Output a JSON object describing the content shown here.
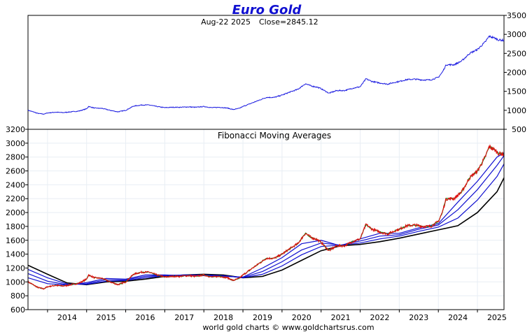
{
  "header": {
    "title": "Euro Gold",
    "date": "Aug-22  2025",
    "close": "Close=2845.12"
  },
  "footer": "world gold charts © www.goldchartsrus.com",
  "colors": {
    "price_line": "#1a1ae0",
    "fib_red": "#e01010",
    "fib_green": "#1a8a1a",
    "fib_blue": "#1010d0",
    "fib_black": "#000000",
    "grid": "#e8eef4"
  },
  "chart_data": [
    {
      "type": "line",
      "title": "Euro Gold",
      "subtitle": "Aug-22  2025   Close=2845.12",
      "y_axis_side": "right",
      "y_ticks": [
        500,
        1000,
        1500,
        2000,
        2500,
        3000,
        3500
      ],
      "ylim": [
        500,
        3500
      ],
      "xlim": [
        2013.5,
        2025.68
      ],
      "grid": false,
      "series": [
        {
          "x": [
            2013.5,
            2013.6,
            2013.75,
            2013.9,
            2014.0,
            2014.2,
            2014.4,
            2014.6,
            2014.8,
            2015.0,
            2015.05,
            2015.2,
            2015.4,
            2015.6,
            2015.8,
            2016.0,
            2016.2,
            2016.4,
            2016.6,
            2016.8,
            2017.0,
            2017.2,
            2017.4,
            2017.6,
            2017.8,
            2018.0,
            2018.2,
            2018.4,
            2018.6,
            2018.75,
            2018.9,
            2019.0,
            2019.2,
            2019.4,
            2019.6,
            2019.8,
            2020.0,
            2020.2,
            2020.4,
            2020.6,
            2020.75,
            2020.9,
            2021.0,
            2021.2,
            2021.4,
            2021.6,
            2021.8,
            2022.0,
            2022.15,
            2022.3,
            2022.5,
            2022.7,
            2022.9,
            2023.0,
            2023.2,
            2023.4,
            2023.6,
            2023.8,
            2024.0,
            2024.1,
            2024.2,
            2024.4,
            2024.6,
            2024.8,
            2025.0,
            2025.2,
            2025.3,
            2025.45,
            2025.55,
            2025.68
          ],
          "y": [
            1000,
            970,
            920,
            900,
            930,
            950,
            940,
            960,
            980,
            1040,
            1100,
            1060,
            1050,
            1000,
            960,
            1000,
            1110,
            1140,
            1140,
            1100,
            1070,
            1080,
            1080,
            1090,
            1080,
            1100,
            1070,
            1080,
            1060,
            1020,
            1050,
            1100,
            1180,
            1260,
            1340,
            1340,
            1400,
            1480,
            1550,
            1700,
            1640,
            1610,
            1570,
            1450,
            1520,
            1520,
            1580,
            1620,
            1830,
            1760,
            1720,
            1690,
            1740,
            1760,
            1810,
            1820,
            1800,
            1800,
            1870,
            2000,
            2200,
            2200,
            2300,
            2500,
            2600,
            2800,
            2950,
            2900,
            2850,
            2845
          ]
        }
      ]
    },
    {
      "type": "line",
      "title": "Fibonacci Moving Averages",
      "y_axis_side": "left",
      "y_ticks": [
        600,
        800,
        1000,
        1200,
        1400,
        1600,
        1800,
        2000,
        2200,
        2400,
        2600,
        2800,
        3000,
        3200
      ],
      "ylim": [
        600,
        3200
      ],
      "x_ticks": [
        "2014",
        "2015",
        "2016",
        "2017",
        "2018",
        "2019",
        "2020",
        "2021",
        "2022",
        "2023",
        "2024",
        "2025"
      ],
      "xlim": [
        2013.5,
        2025.68
      ],
      "grid": true,
      "series": [
        {
          "x": [
            2013.5,
            2013.6,
            2013.75,
            2013.9,
            2014.0,
            2014.2,
            2014.4,
            2014.6,
            2014.8,
            2015.0,
            2015.05,
            2015.2,
            2015.4,
            2015.6,
            2015.8,
            2016.0,
            2016.2,
            2016.4,
            2016.6,
            2016.8,
            2017.0,
            2017.2,
            2017.4,
            2017.6,
            2017.8,
            2018.0,
            2018.2,
            2018.4,
            2018.6,
            2018.75,
            2018.9,
            2019.0,
            2019.2,
            2019.4,
            2019.6,
            2019.8,
            2020.0,
            2020.2,
            2020.4,
            2020.6,
            2020.75,
            2020.9,
            2021.0,
            2021.2,
            2021.4,
            2021.6,
            2021.8,
            2022.0,
            2022.15,
            2022.3,
            2022.5,
            2022.7,
            2022.9,
            2023.0,
            2023.2,
            2023.4,
            2023.6,
            2023.8,
            2024.0,
            2024.1,
            2024.2,
            2024.4,
            2024.6,
            2024.8,
            2025.0,
            2025.2,
            2025.3,
            2025.45,
            2025.55,
            2025.68
          ],
          "y": [
            1000,
            970,
            920,
            900,
            930,
            950,
            940,
            960,
            980,
            1040,
            1100,
            1060,
            1050,
            1000,
            960,
            1000,
            1110,
            1140,
            1140,
            1100,
            1070,
            1080,
            1080,
            1090,
            1080,
            1100,
            1070,
            1080,
            1060,
            1020,
            1050,
            1100,
            1180,
            1260,
            1340,
            1340,
            1400,
            1480,
            1550,
            1700,
            1640,
            1610,
            1570,
            1450,
            1520,
            1520,
            1580,
            1620,
            1830,
            1760,
            1720,
            1690,
            1740,
            1760,
            1810,
            1820,
            1800,
            1800,
            1870,
            2000,
            2200,
            2200,
            2300,
            2500,
            2600,
            2800,
            2950,
            2900,
            2850,
            2845
          ]
        },
        {
          "x": [
            2013.5,
            2014.0,
            2014.5,
            2015.0,
            2015.5,
            2016.0,
            2016.5,
            2017.0,
            2017.5,
            2018.0,
            2018.5,
            2019.0,
            2019.5,
            2020.0,
            2020.5,
            2021.0,
            2021.5,
            2022.0,
            2022.5,
            2023.0,
            2023.5,
            2024.0,
            2024.5,
            2025.0,
            2025.5,
            2025.68
          ],
          "y": [
            1240,
            1110,
            985,
            960,
            1000,
            1010,
            1040,
            1080,
            1100,
            1110,
            1100,
            1060,
            1080,
            1170,
            1310,
            1450,
            1520,
            1540,
            1580,
            1630,
            1690,
            1750,
            1810,
            2000,
            2300,
            2500
          ]
        },
        {
          "x": [
            2013.5,
            2014.0,
            2014.5,
            2015.0,
            2015.5,
            2016.0,
            2016.5,
            2017.0,
            2017.5,
            2018.0,
            2018.5,
            2019.0,
            2019.5,
            2020.0,
            2020.5,
            2021.0,
            2021.5,
            2022.0,
            2022.5,
            2023.0,
            2023.5,
            2024.0,
            2024.5,
            2025.0,
            2025.5,
            2025.68
          ],
          "y": [
            1180,
            1060,
            970,
            965,
            1010,
            1020,
            1060,
            1090,
            1100,
            1100,
            1090,
            1060,
            1110,
            1230,
            1390,
            1510,
            1530,
            1560,
            1620,
            1660,
            1730,
            1790,
            1920,
            2180,
            2520,
            2700
          ]
        },
        {
          "x": [
            2013.5,
            2014.0,
            2014.5,
            2015.0,
            2015.5,
            2016.0,
            2016.5,
            2017.0,
            2017.5,
            2018.0,
            2018.5,
            2019.0,
            2019.5,
            2020.0,
            2020.5,
            2021.0,
            2021.5,
            2022.0,
            2022.5,
            2023.0,
            2023.5,
            2024.0,
            2024.5,
            2025.0,
            2025.5,
            2025.68
          ],
          "y": [
            1120,
            1010,
            960,
            975,
            1030,
            1030,
            1080,
            1095,
            1095,
            1095,
            1085,
            1065,
            1150,
            1290,
            1460,
            1560,
            1530,
            1590,
            1660,
            1680,
            1760,
            1820,
            2040,
            2330,
            2680,
            2820
          ]
        },
        {
          "x": [
            2013.5,
            2014.0,
            2014.5,
            2015.0,
            2015.5,
            2016.0,
            2016.5,
            2017.0,
            2017.5,
            2018.0,
            2018.5,
            2019.0,
            2019.5,
            2020.0,
            2020.5,
            2021.0,
            2021.5,
            2022.0,
            2022.5,
            2023.0,
            2023.5,
            2024.0,
            2024.5,
            2025.0,
            2025.5,
            2025.68
          ],
          "y": [
            1060,
            975,
            955,
            990,
            1050,
            1040,
            1100,
            1100,
            1090,
            1090,
            1080,
            1070,
            1200,
            1350,
            1550,
            1600,
            1520,
            1620,
            1700,
            1700,
            1780,
            1840,
            2150,
            2450,
            2800,
            2860
          ]
        }
      ]
    }
  ]
}
